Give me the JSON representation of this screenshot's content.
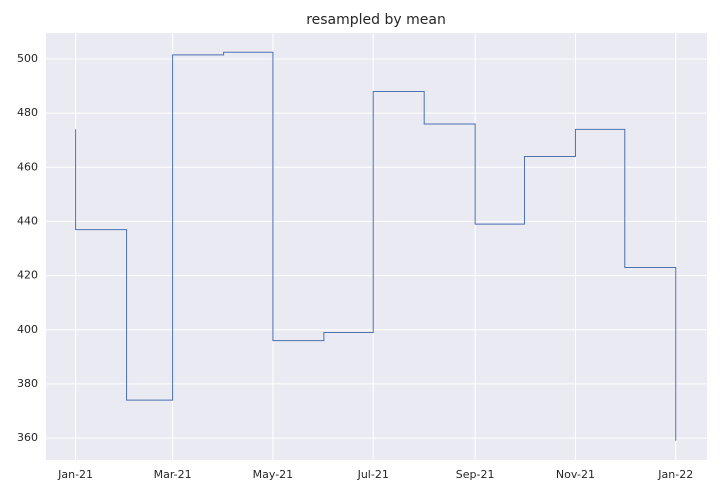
{
  "chart_data": {
    "type": "step",
    "title": "resampled by mean",
    "drawstyle": "steps-post",
    "x": [
      "2021-01",
      "2021-01",
      "2021-02",
      "2021-03",
      "2021-04",
      "2021-05",
      "2021-06",
      "2021-07",
      "2021-08",
      "2021-09",
      "2021-10",
      "2021-11",
      "2021-12",
      "2022-01"
    ],
    "series": [
      {
        "color": "#4c72b0",
        "values": [
          474,
          437,
          374,
          501.5,
          502.5,
          396,
          399,
          488,
          476,
          439,
          464,
          474,
          423,
          359
        ]
      }
    ],
    "xlim": [
      "2020-12-14",
      "2022-01-20"
    ],
    "xticks": [
      {
        "value": "2021-01",
        "label": "Jan-21"
      },
      {
        "value": "2021-03",
        "label": "Mar-21"
      },
      {
        "value": "2021-05",
        "label": "May-21"
      },
      {
        "value": "2021-07",
        "label": "Jul-21"
      },
      {
        "value": "2021-09",
        "label": "Sep-21"
      },
      {
        "value": "2021-11",
        "label": "Nov-21"
      },
      {
        "value": "2022-01",
        "label": "Jan-22"
      }
    ],
    "ylim": [
      351.9,
      509.6
    ],
    "yticks": [
      360,
      380,
      400,
      420,
      440,
      460,
      480,
      500
    ],
    "grid": true
  }
}
